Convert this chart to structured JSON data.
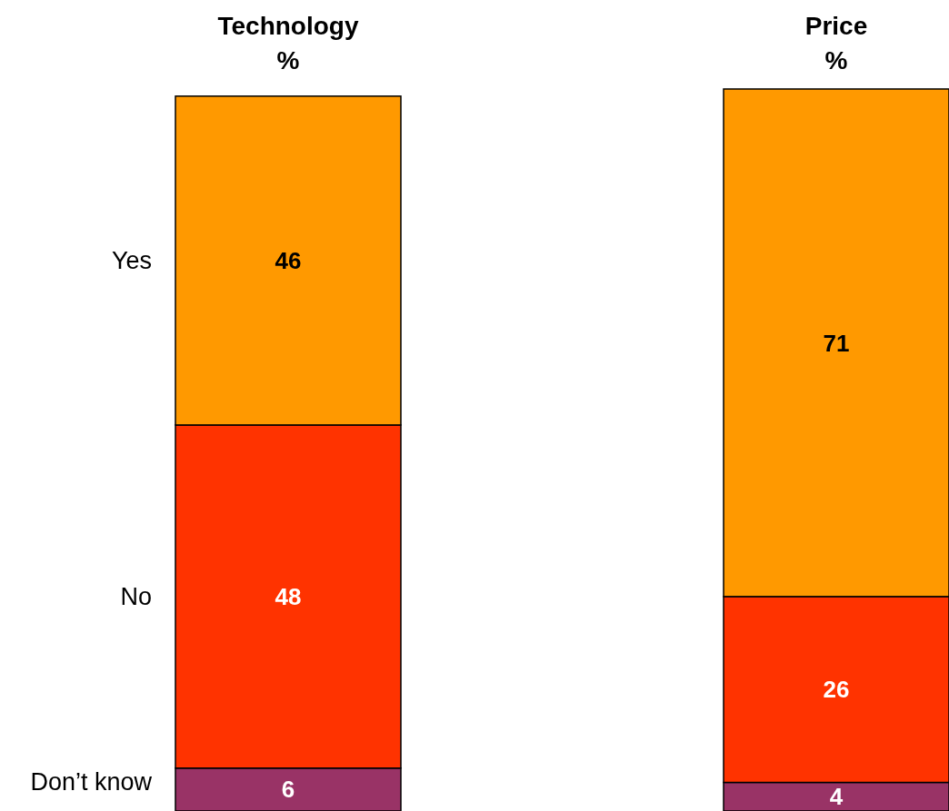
{
  "chart_data": {
    "type": "bar",
    "stacked": true,
    "data_labels": true,
    "categories": [
      "Technology\n%",
      "Price\n%"
    ],
    "series": [
      {
        "name": "Don’t know",
        "color": "#993366",
        "values": [
          6,
          4
        ]
      },
      {
        "name": "No",
        "color": "#ff3300",
        "values": [
          48,
          26
        ]
      },
      {
        "name": "Yes",
        "color": "#ff9900",
        "values": [
          46,
          71
        ]
      }
    ]
  }
}
